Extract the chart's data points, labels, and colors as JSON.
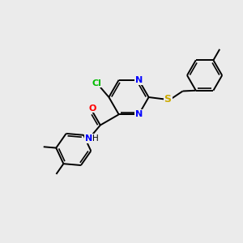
{
  "background_color": "#ebebeb",
  "atom_colors": {
    "C": "#000000",
    "N": "#0000ff",
    "O": "#ff0000",
    "S": "#ccaa00",
    "Cl": "#00bb00",
    "H": "#000000"
  },
  "bond_color": "#000000",
  "figsize": [
    3.0,
    3.0
  ],
  "dpi": 100,
  "lw": 1.4,
  "ring_r": 0.72
}
